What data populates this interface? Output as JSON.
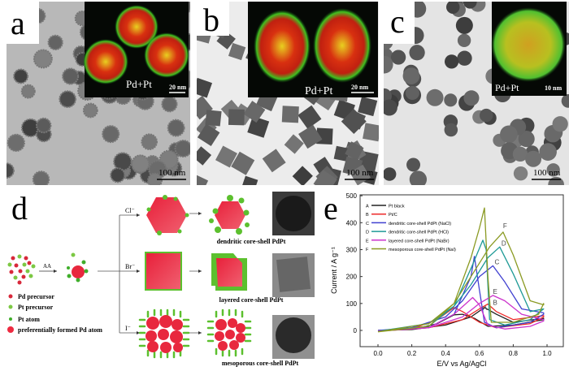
{
  "panels": {
    "a": {
      "label": "a",
      "inset_label": "Pd+Pt",
      "inset_scale": "20 nm",
      "scale": "100 nm",
      "particle_shape": "dendritic"
    },
    "b": {
      "label": "b",
      "inset_label": "Pd+Pt",
      "inset_scale": "20 nm",
      "scale": "100 nm",
      "particle_shape": "cube"
    },
    "c": {
      "label": "c",
      "inset_label": "Pd+Pt",
      "inset_scale": "10 nm",
      "scale": "100 nm",
      "particle_shape": "mesoporous"
    }
  },
  "diagram": {
    "label": "d",
    "reagent": "AA",
    "branches": [
      {
        "ion": "Cl⁻",
        "product": "dendritic core-shell PdPt"
      },
      {
        "ion": "Br⁻",
        "product": "layered core-shell PdPt"
      },
      {
        "ion": "I⁻",
        "product": "mesoporous core-shell PdPt"
      }
    ],
    "legend": [
      {
        "label": "Pd precursor",
        "color": "#d8283a"
      },
      {
        "label": "Pt precursor",
        "color": "#7cc843"
      },
      {
        "label": "Pt atom",
        "color": "#3fae2a"
      },
      {
        "label": "preferentially formed Pd atom",
        "color": "#ee2a40"
      }
    ]
  },
  "chart_data": {
    "label": "e",
    "type": "line",
    "xlabel": "E/V vs Ag/AgCl",
    "ylabel": "Current / A g⁻¹",
    "xlim": [
      -0.1,
      1.05
    ],
    "ylim": [
      -60,
      500
    ],
    "xticks": [
      "0.0",
      "0.2",
      "0.4",
      "0.6",
      "0.8",
      "1.0"
    ],
    "xtick_values": [
      0,
      0.2,
      0.4,
      0.6,
      0.8,
      1.0
    ],
    "yticks": [
      "0",
      "100",
      "200",
      "300",
      "400",
      "500"
    ],
    "ytick_values": [
      0,
      100,
      200,
      300,
      400,
      500
    ],
    "legend_position": "top-left",
    "series": [
      {
        "key": "A",
        "name": "Pt black",
        "color": "#222222",
        "x": [
          0,
          0.2,
          0.35,
          0.45,
          0.5,
          0.57,
          0.65,
          0.8,
          0.98,
          0.98,
          0.8,
          0.7,
          0.63,
          0.55,
          0.4,
          0.2,
          0
        ],
        "y": [
          0,
          3,
          25,
          58,
          60,
          45,
          15,
          20,
          40,
          45,
          30,
          60,
          85,
          50,
          20,
          3,
          0
        ],
        "label_at": [
          0.62,
          75
        ]
      },
      {
        "key": "B",
        "name": "Pt/C",
        "color": "#ee2a2a",
        "x": [
          0,
          0.2,
          0.35,
          0.45,
          0.5,
          0.6,
          0.7,
          0.9,
          0.98,
          0.98,
          0.8,
          0.7,
          0.65,
          0.6,
          0.5,
          0.3,
          0
        ],
        "y": [
          0,
          5,
          40,
          85,
          70,
          30,
          10,
          25,
          50,
          55,
          40,
          70,
          98,
          80,
          40,
          10,
          -3
        ],
        "label_at": [
          0.68,
          95
        ]
      },
      {
        "key": "C",
        "name": "dendritic core-shell PdPt (NaCl)",
        "color": "#4040d0",
        "x": [
          0,
          0.3,
          0.45,
          0.55,
          0.57,
          0.6,
          0.63,
          0.7,
          0.9,
          0.98,
          0.98,
          0.85,
          0.75,
          0.68,
          0.6,
          0.5,
          0.4,
          0.2,
          0
        ],
        "y": [
          0,
          10,
          60,
          200,
          275,
          150,
          30,
          10,
          30,
          60,
          65,
          80,
          180,
          240,
          200,
          110,
          50,
          10,
          0
        ],
        "label_at": [
          0.69,
          245
        ]
      },
      {
        "key": "D",
        "name": "dendritic core-shell PdPt (HCl)",
        "color": "#1e9a96",
        "x": [
          0,
          0.3,
          0.45,
          0.55,
          0.62,
          0.64,
          0.66,
          0.75,
          0.9,
          0.98,
          0.98,
          0.9,
          0.8,
          0.72,
          0.65,
          0.55,
          0.45,
          0.3,
          0
        ],
        "y": [
          -3,
          15,
          90,
          230,
          335,
          300,
          40,
          20,
          40,
          80,
          80,
          70,
          210,
          310,
          270,
          170,
          90,
          25,
          -3
        ],
        "label_at": [
          0.73,
          315
        ]
      },
      {
        "key": "E",
        "name": "layered core-shell PdPt (NaBr)",
        "color": "#cc33cc",
        "x": [
          0,
          0.3,
          0.45,
          0.56,
          0.6,
          0.65,
          0.75,
          0.9,
          0.98,
          0.98,
          0.85,
          0.75,
          0.68,
          0.6,
          0.5,
          0.3,
          0
        ],
        "y": [
          -3,
          10,
          60,
          122,
          95,
          20,
          5,
          15,
          35,
          40,
          60,
          110,
          130,
          100,
          50,
          10,
          -3
        ],
        "label_at": [
          0.68,
          135
        ]
      },
      {
        "key": "F",
        "name": "mesoporous core-shell PdPt (NaI)",
        "color": "#8a9a22",
        "x": [
          0,
          0.3,
          0.45,
          0.55,
          0.6,
          0.63,
          0.65,
          0.67,
          0.8,
          0.95,
          0.98,
          0.98,
          0.9,
          0.8,
          0.74,
          0.66,
          0.55,
          0.45,
          0.3,
          0
        ],
        "y": [
          -5,
          15,
          100,
          270,
          380,
          455,
          200,
          30,
          30,
          60,
          100,
          95,
          110,
          280,
          365,
          310,
          200,
          100,
          25,
          -5
        ],
        "label_at": [
          0.74,
          380
        ]
      }
    ]
  }
}
